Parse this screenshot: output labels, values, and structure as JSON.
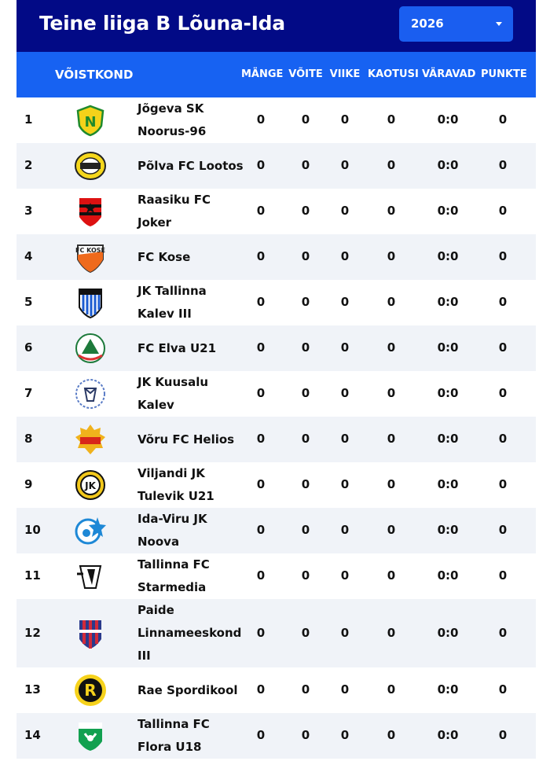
{
  "header": {
    "title": "Teine liiga B Lõuna-Ida",
    "season": {
      "selected": "2026"
    }
  },
  "columns": {
    "team": "VÕISTKOND",
    "played": "MÄNGE",
    "won": "VÕITE",
    "drawn": "VIIKE",
    "lost": "KAOTUSI",
    "goals": "VÄRAVAD",
    "points": "PUNKTE"
  },
  "colors": {
    "title_bar": "#020a86",
    "header_row": "#1762f2",
    "select_bg": "#1a5ef0",
    "alt_row": "#f0f3f8"
  },
  "rows": [
    {
      "pos": "1",
      "name_lines": [
        "Jõgeva SK",
        "Noorus-96"
      ],
      "played": "0",
      "won": "0",
      "drawn": "0",
      "lost": "0",
      "goals": "0:0",
      "points": "0",
      "logo": "noorus-crest-icon"
    },
    {
      "pos": "2",
      "name_lines": [
        "Põlva FC Lootos"
      ],
      "played": "0",
      "won": "0",
      "drawn": "0",
      "lost": "0",
      "goals": "0:0",
      "points": "0",
      "logo": "lootos-crest-icon"
    },
    {
      "pos": "3",
      "name_lines": [
        "Raasiku FC",
        "Joker"
      ],
      "played": "0",
      "won": "0",
      "drawn": "0",
      "lost": "0",
      "goals": "0:0",
      "points": "0",
      "logo": "joker-crest-icon"
    },
    {
      "pos": "4",
      "name_lines": [
        "FC Kose"
      ],
      "played": "0",
      "won": "0",
      "drawn": "0",
      "lost": "0",
      "goals": "0:0",
      "points": "0",
      "logo": "kose-crest-icon"
    },
    {
      "pos": "5",
      "name_lines": [
        "JK Tallinna",
        "Kalev III"
      ],
      "played": "0",
      "won": "0",
      "drawn": "0",
      "lost": "0",
      "goals": "0:0",
      "points": "0",
      "logo": "kalev-crest-icon"
    },
    {
      "pos": "6",
      "name_lines": [
        "FC Elva U21"
      ],
      "played": "0",
      "won": "0",
      "drawn": "0",
      "lost": "0",
      "goals": "0:0",
      "points": "0",
      "logo": "elva-crest-icon"
    },
    {
      "pos": "7",
      "name_lines": [
        "JK Kuusalu",
        "Kalev"
      ],
      "played": "0",
      "won": "0",
      "drawn": "0",
      "lost": "0",
      "goals": "0:0",
      "points": "0",
      "logo": "kuusalu-crest-icon"
    },
    {
      "pos": "8",
      "name_lines": [
        "Võru FC Helios"
      ],
      "played": "0",
      "won": "0",
      "drawn": "0",
      "lost": "0",
      "goals": "0:0",
      "points": "0",
      "logo": "helios-crest-icon"
    },
    {
      "pos": "9",
      "name_lines": [
        "Viljandi JK",
        "Tulevik U21"
      ],
      "played": "0",
      "won": "0",
      "drawn": "0",
      "lost": "0",
      "goals": "0:0",
      "points": "0",
      "logo": "tulevik-crest-icon"
    },
    {
      "pos": "10",
      "name_lines": [
        "Ida-Viru JK",
        "Noova"
      ],
      "played": "0",
      "won": "0",
      "drawn": "0",
      "lost": "0",
      "goals": "0:0",
      "points": "0",
      "logo": "noova-crest-icon"
    },
    {
      "pos": "11",
      "name_lines": [
        "Tallinna FC",
        "Starmedia"
      ],
      "played": "0",
      "won": "0",
      "drawn": "0",
      "lost": "0",
      "goals": "0:0",
      "points": "0",
      "logo": "starmedia-crest-icon"
    },
    {
      "pos": "12",
      "name_lines": [
        "Paide",
        "Linnameeskond",
        "III"
      ],
      "played": "0",
      "won": "0",
      "drawn": "0",
      "lost": "0",
      "goals": "0:0",
      "points": "0",
      "logo": "paide-crest-icon"
    },
    {
      "pos": "13",
      "name_lines": [
        "Rae Spordikool"
      ],
      "played": "0",
      "won": "0",
      "drawn": "0",
      "lost": "0",
      "goals": "0:0",
      "points": "0",
      "logo": "rae-crest-icon"
    },
    {
      "pos": "14",
      "name_lines": [
        "Tallinna FC",
        "Flora U18"
      ],
      "played": "0",
      "won": "0",
      "drawn": "0",
      "lost": "0",
      "goals": "0:0",
      "points": "0",
      "logo": "flora-crest-icon"
    }
  ]
}
